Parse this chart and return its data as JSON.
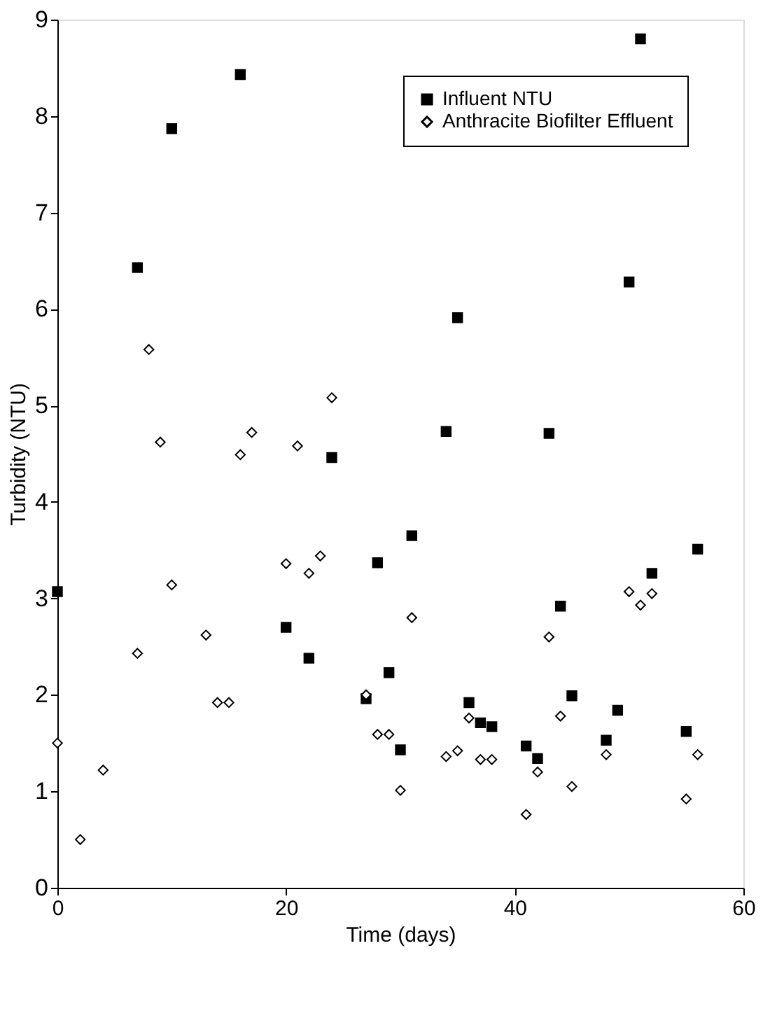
{
  "chart_data": {
    "type": "scatter",
    "xlabel": "Time (days)",
    "ylabel": "Turbidity (NTU)",
    "xlim": [
      0,
      60
    ],
    "xticks": [
      0,
      20,
      40,
      60
    ],
    "ylim": [
      0,
      9
    ],
    "yticks": [
      0,
      1,
      2,
      3,
      4,
      5,
      6,
      7,
      8,
      9
    ],
    "grid": false,
    "legend": "top right",
    "series": [
      {
        "name": "Influent NTU",
        "color": "#000000",
        "marker": "square",
        "x": [
          0,
          7,
          10,
          16,
          20,
          22,
          24,
          27,
          28,
          29,
          30,
          31,
          34,
          35,
          36,
          37,
          38,
          41,
          42,
          43,
          44,
          45,
          48,
          49,
          50,
          51,
          52,
          55,
          56
        ],
        "values": [
          3.07,
          6.43,
          7.87,
          8.43,
          2.7,
          2.38,
          4.46,
          1.96,
          3.37,
          2.23,
          1.43,
          3.65,
          4.73,
          5.91,
          1.92,
          1.71,
          1.67,
          1.47,
          1.34,
          4.71,
          2.92,
          1.99,
          1.53,
          1.84,
          6.28,
          8.8,
          3.26,
          1.62,
          3.51
        ]
      },
      {
        "name": "Anthracite Biofilter Effluent",
        "color": "#000000",
        "marker": "diamond",
        "x": [
          0,
          2,
          4,
          7,
          8,
          9,
          10,
          13,
          14,
          15,
          16,
          17,
          20,
          21,
          22,
          23,
          24,
          27,
          28,
          29,
          30,
          31,
          34,
          35,
          36,
          37,
          38,
          41,
          42,
          43,
          44,
          45,
          48,
          50,
          51,
          52,
          55,
          56
        ],
        "values": [
          1.5,
          0.5,
          1.22,
          2.43,
          5.58,
          4.62,
          3.14,
          2.62,
          1.92,
          1.92,
          4.49,
          4.72,
          3.36,
          4.58,
          3.26,
          3.44,
          5.08,
          2.0,
          1.59,
          1.59,
          1.01,
          2.8,
          1.36,
          1.42,
          1.76,
          1.33,
          1.33,
          0.76,
          1.2,
          2.6,
          1.78,
          1.05,
          1.38,
          3.07,
          2.93,
          3.05,
          0.92,
          1.38
        ]
      }
    ]
  }
}
